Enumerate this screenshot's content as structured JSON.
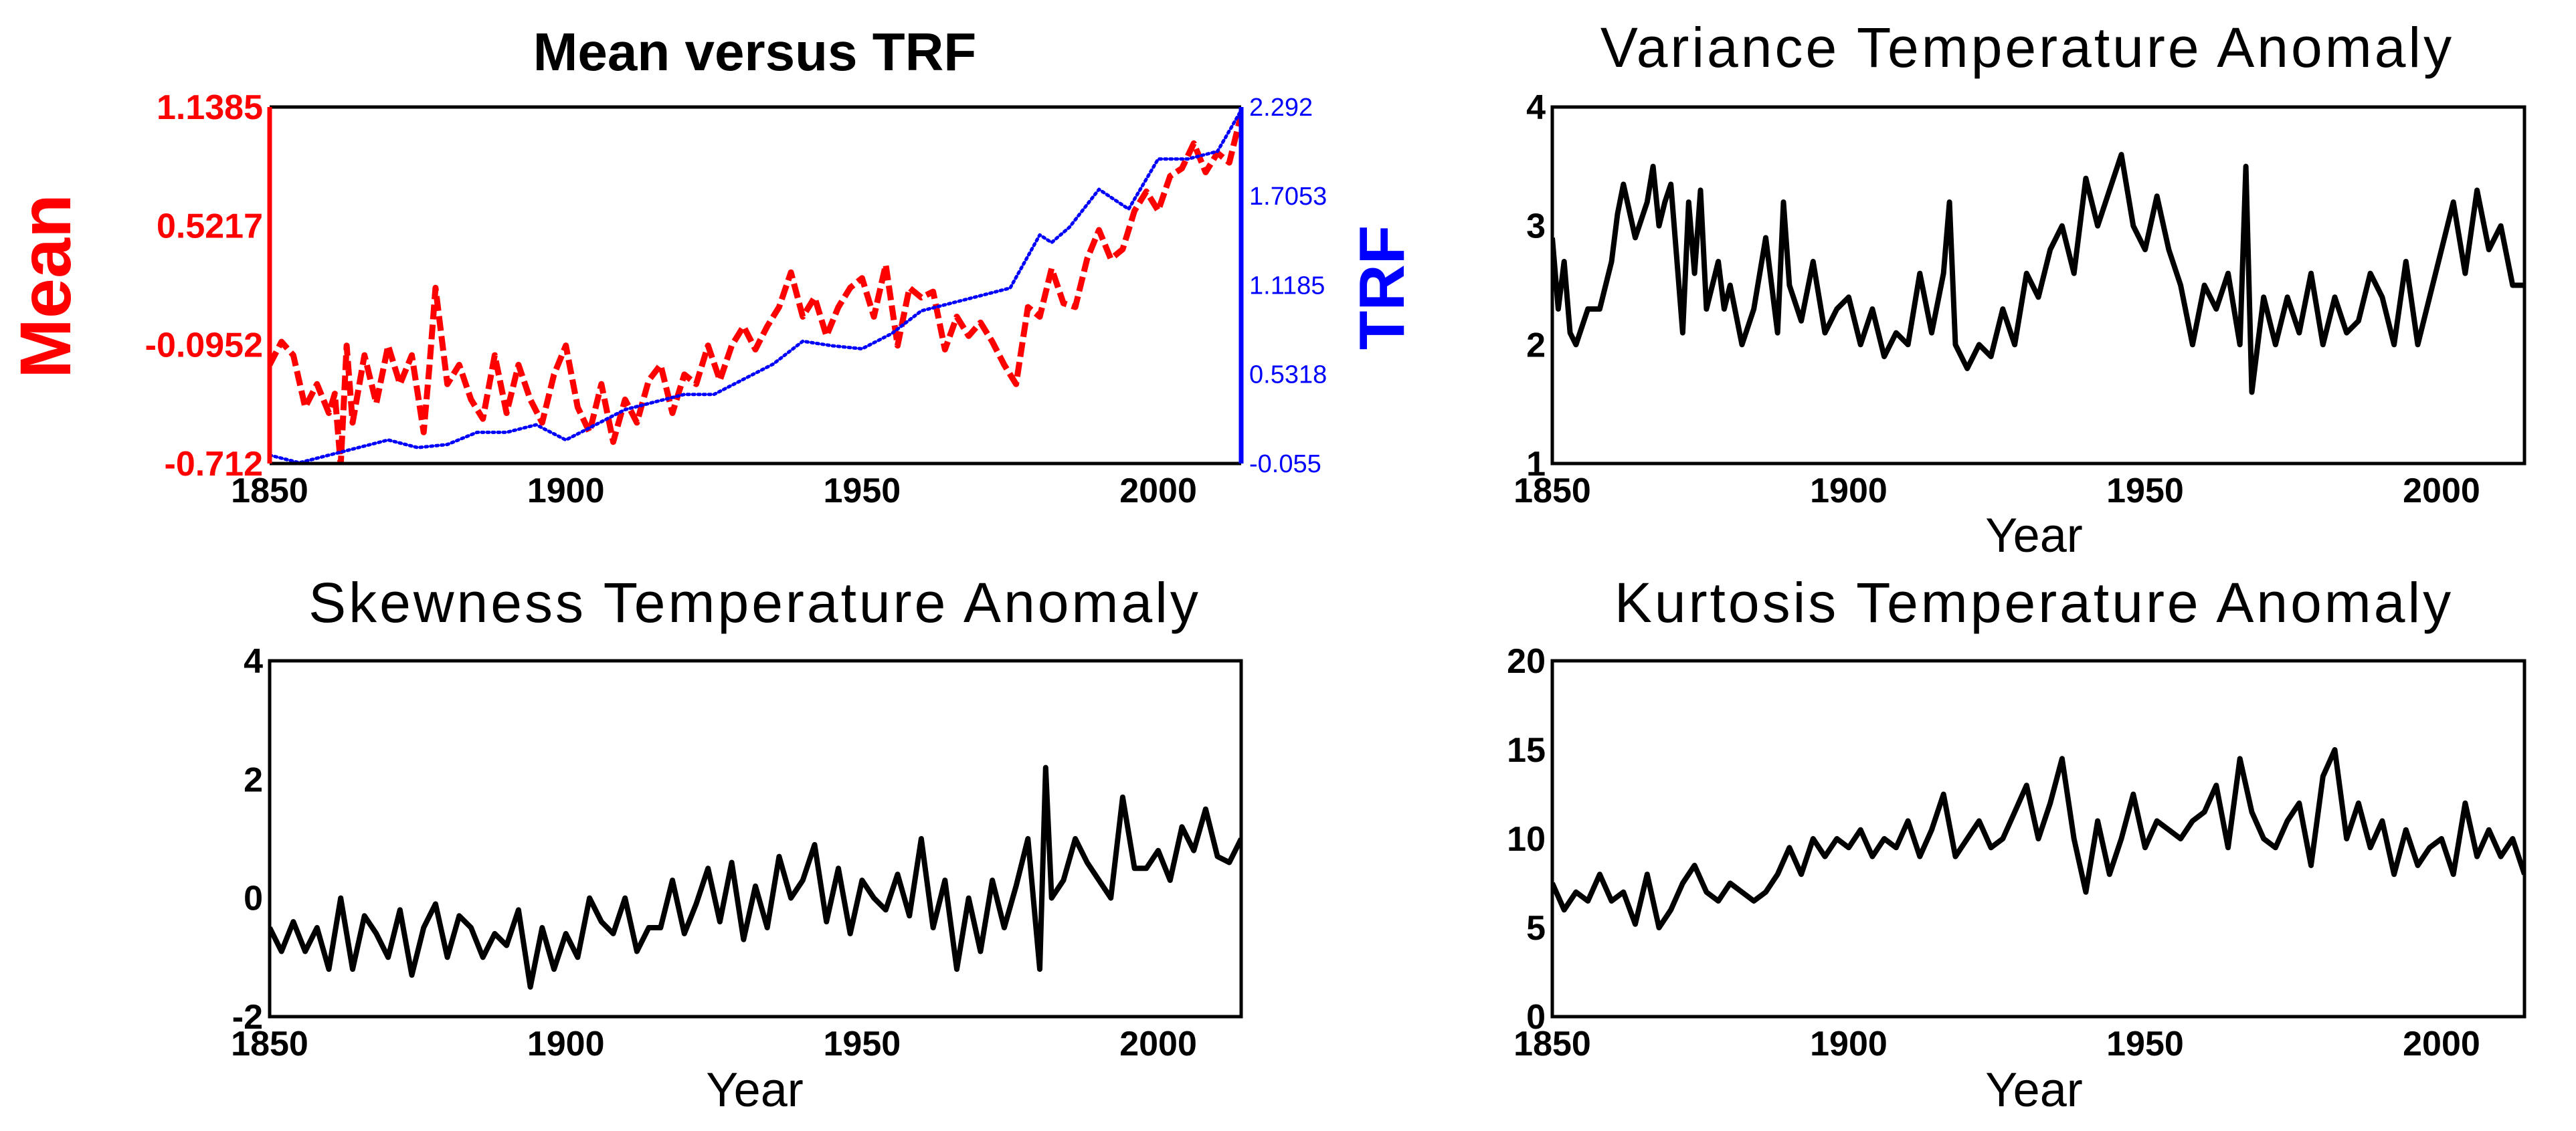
{
  "chart_data": [
    {
      "type": "line",
      "title": "Mean versus TRF",
      "xlabel": "",
      "ylabel": "Mean",
      "ylabel_right": "TRF",
      "xlim": [
        1850,
        2014
      ],
      "x_ticks": [
        "1850",
        "1900",
        "1950",
        "2000"
      ],
      "ylim": [
        -0.712,
        1.1385
      ],
      "y_ticks": [
        "1.1385",
        "0.5217",
        "-0.0952",
        "-0.712"
      ],
      "ylim_right": [
        -0.055,
        2.292
      ],
      "y_ticks_right": [
        "2.292",
        "1.7053",
        "1.1185",
        "0.5318",
        "-0.055"
      ],
      "colors": {
        "left_axis": "#ff0000",
        "right_axis": "#0000ff"
      },
      "series": [
        {
          "name": "Mean",
          "axis": "left",
          "color": "#ff0000",
          "style": "dashed",
          "x": [
            1850,
            1852,
            1854,
            1856,
            1858,
            1860,
            1861,
            1862,
            1863,
            1864,
            1866,
            1868,
            1870,
            1872,
            1874,
            1876,
            1877,
            1878,
            1880,
            1882,
            1884,
            1886,
            1888,
            1890,
            1892,
            1894,
            1896,
            1898,
            1900,
            1902,
            1904,
            1906,
            1908,
            1910,
            1912,
            1914,
            1916,
            1918,
            1920,
            1922,
            1924,
            1926,
            1928,
            1930,
            1932,
            1934,
            1936,
            1938,
            1940,
            1942,
            1944,
            1946,
            1948,
            1950,
            1952,
            1954,
            1956,
            1958,
            1960,
            1962,
            1964,
            1966,
            1968,
            1970,
            1972,
            1974,
            1976,
            1978,
            1980,
            1982,
            1984,
            1986,
            1988,
            1990,
            1992,
            1994,
            1996,
            1998,
            2000,
            2002,
            2004,
            2006,
            2008,
            2010,
            2012,
            2014
          ],
          "values": [
            -0.2,
            -0.08,
            -0.15,
            -0.42,
            -0.3,
            -0.45,
            -0.35,
            -0.72,
            -0.1,
            -0.5,
            -0.15,
            -0.4,
            -0.1,
            -0.3,
            -0.15,
            -0.55,
            -0.2,
            0.2,
            -0.3,
            -0.2,
            -0.38,
            -0.48,
            -0.15,
            -0.45,
            -0.2,
            -0.38,
            -0.5,
            -0.25,
            -0.1,
            -0.42,
            -0.55,
            -0.3,
            -0.6,
            -0.38,
            -0.5,
            -0.28,
            -0.2,
            -0.45,
            -0.25,
            -0.3,
            -0.1,
            -0.28,
            -0.1,
            0.0,
            -0.12,
            0.0,
            0.1,
            0.28,
            0.05,
            0.15,
            -0.05,
            0.1,
            0.2,
            0.25,
            0.05,
            0.32,
            -0.1,
            0.2,
            0.15,
            0.18,
            -0.12,
            0.05,
            -0.05,
            0.02,
            -0.08,
            -0.2,
            -0.3,
            0.1,
            0.05,
            0.3,
            0.12,
            0.1,
            0.35,
            0.5,
            0.35,
            0.4,
            0.6,
            0.7,
            0.6,
            0.78,
            0.82,
            0.95,
            0.8,
            0.9,
            0.85,
            1.1
          ]
        },
        {
          "name": "TRF",
          "axis": "right",
          "color": "#0000ff",
          "style": "dotted",
          "x": [
            1850,
            1855,
            1860,
            1865,
            1870,
            1875,
            1880,
            1885,
            1890,
            1895,
            1900,
            1905,
            1910,
            1915,
            1920,
            1925,
            1930,
            1935,
            1940,
            1945,
            1950,
            1955,
            1960,
            1965,
            1970,
            1975,
            1980,
            1982,
            1985,
            1990,
            1995,
            2000,
            2005,
            2010,
            2014
          ],
          "values": [
            0.0,
            -0.05,
            0.0,
            0.05,
            0.1,
            0.05,
            0.07,
            0.15,
            0.15,
            0.2,
            0.1,
            0.2,
            0.3,
            0.35,
            0.4,
            0.4,
            0.5,
            0.6,
            0.75,
            0.72,
            0.7,
            0.8,
            0.95,
            1.0,
            1.05,
            1.1,
            1.45,
            1.4,
            1.5,
            1.75,
            1.62,
            1.95,
            1.95,
            2.0,
            2.27
          ]
        }
      ]
    },
    {
      "type": "line",
      "title": "Variance Temperature Anomaly",
      "xlabel": "Year",
      "ylabel": "",
      "xlim": [
        1850,
        2014
      ],
      "x_ticks": [
        "1850",
        "1900",
        "1950",
        "2000"
      ],
      "ylim": [
        1,
        4
      ],
      "y_ticks": [
        "4",
        "3",
        "2",
        "1"
      ],
      "series": [
        {
          "name": "Variance",
          "color": "#000000",
          "x": [
            1850,
            1851,
            1852,
            1853,
            1854,
            1856,
            1858,
            1860,
            1861,
            1862,
            1864,
            1866,
            1867,
            1868,
            1869,
            1870,
            1872,
            1873,
            1874,
            1875,
            1876,
            1878,
            1879,
            1880,
            1882,
            1884,
            1886,
            1888,
            1889,
            1890,
            1892,
            1894,
            1896,
            1898,
            1900,
            1902,
            1904,
            1906,
            1908,
            1910,
            1912,
            1914,
            1916,
            1917,
            1918,
            1920,
            1922,
            1924,
            1926,
            1928,
            1930,
            1932,
            1934,
            1936,
            1938,
            1940,
            1942,
            1944,
            1946,
            1948,
            1950,
            1952,
            1954,
            1956,
            1958,
            1960,
            1962,
            1964,
            1966,
            1967,
            1968,
            1969,
            1970,
            1972,
            1974,
            1976,
            1978,
            1980,
            1982,
            1984,
            1986,
            1988,
            1990,
            1992,
            1994,
            1996,
            1998,
            2000,
            2002,
            2004,
            2006,
            2008,
            2010,
            2012,
            2014
          ],
          "values": [
            2.9,
            2.3,
            2.7,
            2.1,
            2.0,
            2.3,
            2.3,
            2.7,
            3.1,
            3.35,
            2.9,
            3.2,
            3.5,
            3.0,
            3.2,
            3.35,
            2.1,
            3.2,
            2.6,
            3.3,
            2.3,
            2.7,
            2.3,
            2.5,
            2.0,
            2.3,
            2.9,
            2.1,
            3.2,
            2.5,
            2.2,
            2.7,
            2.1,
            2.3,
            2.4,
            2.0,
            2.3,
            1.9,
            2.1,
            2.0,
            2.6,
            2.1,
            2.6,
            3.2,
            2.0,
            1.8,
            2.0,
            1.9,
            2.3,
            2.0,
            2.6,
            2.4,
            2.8,
            3.0,
            2.6,
            3.4,
            3.0,
            3.3,
            3.6,
            3.0,
            2.8,
            3.25,
            2.8,
            2.5,
            2.0,
            2.5,
            2.3,
            2.6,
            2.0,
            3.5,
            1.6,
            2.0,
            2.4,
            2.0,
            2.4,
            2.1,
            2.6,
            2.0,
            2.4,
            2.1,
            2.2,
            2.6,
            2.4,
            2.0,
            2.7,
            2.0,
            2.4,
            2.8,
            3.2,
            2.6,
            3.3,
            2.8,
            3.0,
            2.5,
            2.5
          ]
        }
      ]
    },
    {
      "type": "line",
      "title": "Skewness Temperature Anomaly",
      "xlabel": "Year",
      "ylabel": "",
      "xlim": [
        1850,
        2014
      ],
      "x_ticks": [
        "1850",
        "1900",
        "1950",
        "2000"
      ],
      "ylim": [
        -2,
        4
      ],
      "y_ticks": [
        "4",
        "2",
        "0",
        "-2"
      ],
      "series": [
        {
          "name": "Skewness",
          "color": "#000000",
          "x": [
            1850,
            1852,
            1854,
            1856,
            1858,
            1860,
            1862,
            1864,
            1866,
            1868,
            1870,
            1872,
            1874,
            1876,
            1878,
            1880,
            1882,
            1884,
            1886,
            1888,
            1890,
            1892,
            1894,
            1896,
            1898,
            1900,
            1902,
            1904,
            1906,
            1908,
            1910,
            1912,
            1914,
            1916,
            1918,
            1920,
            1922,
            1924,
            1926,
            1928,
            1930,
            1932,
            1934,
            1936,
            1938,
            1940,
            1942,
            1944,
            1946,
            1948,
            1950,
            1952,
            1954,
            1956,
            1958,
            1960,
            1962,
            1964,
            1966,
            1968,
            1970,
            1972,
            1974,
            1976,
            1978,
            1980,
            1981,
            1982,
            1984,
            1986,
            1988,
            1990,
            1992,
            1994,
            1996,
            1998,
            2000,
            2002,
            2004,
            2006,
            2008,
            2010,
            2012,
            2014
          ],
          "values": [
            -0.5,
            -0.9,
            -0.4,
            -0.9,
            -0.5,
            -1.2,
            0.0,
            -1.2,
            -0.3,
            -0.6,
            -1.0,
            -0.2,
            -1.3,
            -0.5,
            -0.1,
            -1.0,
            -0.3,
            -0.5,
            -1.0,
            -0.6,
            -0.8,
            -0.2,
            -1.5,
            -0.5,
            -1.2,
            -0.6,
            -1.0,
            0.0,
            -0.4,
            -0.6,
            0.0,
            -0.9,
            -0.5,
            -0.5,
            0.3,
            -0.6,
            -0.1,
            0.5,
            -0.4,
            0.6,
            -0.7,
            0.2,
            -0.5,
            0.7,
            0.0,
            0.3,
            0.9,
            -0.4,
            0.5,
            -0.6,
            0.3,
            0.0,
            -0.2,
            0.4,
            -0.3,
            1.0,
            -0.5,
            0.3,
            -1.2,
            0.0,
            -0.9,
            0.3,
            -0.5,
            0.2,
            1.0,
            -1.2,
            2.2,
            0.0,
            0.3,
            1.0,
            0.6,
            0.3,
            0.0,
            1.7,
            0.5,
            0.5,
            0.8,
            0.3,
            1.2,
            0.8,
            1.5,
            0.7,
            0.6,
            1.0
          ]
        }
      ]
    },
    {
      "type": "line",
      "title": "Kurtosis Temperature Anomaly",
      "xlabel": "Year",
      "ylabel": "",
      "xlim": [
        1850,
        2014
      ],
      "x_ticks": [
        "1850",
        "1900",
        "1950",
        "2000"
      ],
      "ylim": [
        0,
        20
      ],
      "y_ticks": [
        "20",
        "15",
        "10",
        "5",
        "0"
      ],
      "series": [
        {
          "name": "Kurtosis",
          "color": "#000000",
          "x": [
            1850,
            1852,
            1854,
            1856,
            1858,
            1860,
            1862,
            1864,
            1866,
            1868,
            1870,
            1872,
            1874,
            1876,
            1878,
            1880,
            1882,
            1884,
            1886,
            1888,
            1890,
            1892,
            1894,
            1896,
            1898,
            1900,
            1902,
            1904,
            1906,
            1908,
            1910,
            1912,
            1914,
            1916,
            1918,
            1920,
            1922,
            1924,
            1926,
            1928,
            1930,
            1932,
            1934,
            1936,
            1938,
            1940,
            1942,
            1944,
            1946,
            1948,
            1950,
            1952,
            1954,
            1956,
            1958,
            1960,
            1962,
            1964,
            1966,
            1968,
            1970,
            1972,
            1974,
            1976,
            1978,
            1980,
            1982,
            1984,
            1986,
            1988,
            1990,
            1992,
            1994,
            1996,
            1998,
            2000,
            2002,
            2004,
            2006,
            2008,
            2010,
            2012,
            2014
          ],
          "values": [
            7.5,
            6.0,
            7.0,
            6.5,
            8.0,
            6.5,
            7.0,
            5.2,
            8.0,
            5.0,
            6.0,
            7.5,
            8.5,
            7.0,
            6.5,
            7.5,
            7.0,
            6.5,
            7.0,
            8.0,
            9.5,
            8.0,
            10.0,
            9.0,
            10.0,
            9.5,
            10.5,
            9.0,
            10.0,
            9.5,
            11.0,
            9.0,
            10.5,
            12.5,
            9.0,
            10.0,
            11.0,
            9.5,
            10.0,
            11.5,
            13.0,
            10.0,
            12.0,
            14.5,
            10.0,
            7.0,
            11.0,
            8.0,
            10.0,
            12.5,
            9.5,
            11.0,
            10.5,
            10.0,
            11.0,
            11.5,
            13.0,
            9.5,
            14.5,
            11.5,
            10.0,
            9.5,
            11.0,
            12.0,
            8.5,
            13.5,
            15.0,
            10.0,
            12.0,
            9.5,
            11.0,
            8.0,
            10.5,
            8.5,
            9.5,
            10.0,
            8.0,
            12.0,
            9.0,
            10.5,
            9.0,
            10.0,
            8.0
          ]
        }
      ]
    }
  ]
}
